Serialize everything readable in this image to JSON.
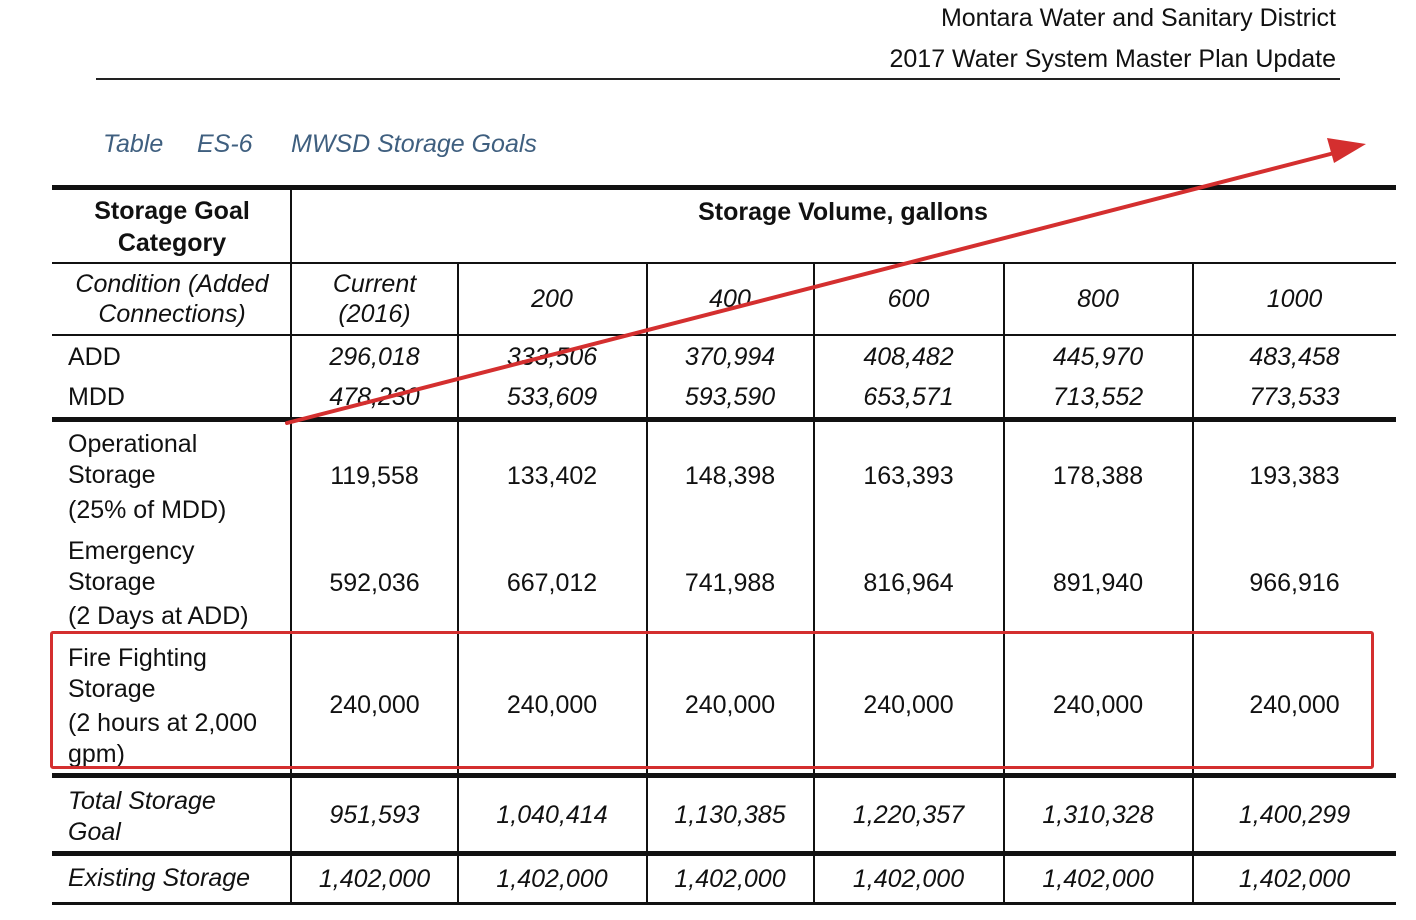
{
  "header": {
    "line1": "Montara Water and Sanitary District",
    "line2": "2017 Water System Master Plan Update"
  },
  "caption": {
    "table_label": "Table",
    "table_number": "ES-6",
    "table_title": "MWSD Storage Goals"
  },
  "table": {
    "col0_header": "Storage Goal Category",
    "span_header": "Storage Volume, gallons",
    "condition_label": "Condition (Added Connections)",
    "columns": [
      "Current (2016)",
      "200",
      "400",
      "600",
      "800",
      "1000"
    ],
    "rows": [
      {
        "label": "ADD",
        "values": [
          "296,018",
          "333,506",
          "370,994",
          "408,482",
          "445,970",
          "483,458"
        ]
      },
      {
        "label": "MDD",
        "values": [
          "478,230",
          "533,609",
          "593,590",
          "653,571",
          "713,552",
          "773,533"
        ]
      },
      {
        "label_lines": [
          "Operational",
          "Storage",
          "(25% of MDD)"
        ],
        "values": [
          "119,558",
          "133,402",
          "148,398",
          "163,393",
          "178,388",
          "193,383"
        ]
      },
      {
        "label_lines": [
          "Emergency",
          "Storage",
          "(2 Days at ADD)"
        ],
        "values": [
          "592,036",
          "667,012",
          "741,988",
          "816,964",
          "891,940",
          "966,916"
        ]
      },
      {
        "label_lines": [
          "Fire Fighting",
          "Storage",
          "(2 hours at 2,000",
          "gpm)"
        ],
        "values": [
          "240,000",
          "240,000",
          "240,000",
          "240,000",
          "240,000",
          "240,000"
        ]
      },
      {
        "label_lines": [
          "Total Storage",
          "Goal"
        ],
        "values": [
          "951,593",
          "1,040,414",
          "1,130,385",
          "1,220,357",
          "1,310,328",
          "1,400,299"
        ]
      },
      {
        "label": "Existing Storage",
        "values": [
          "1,402,000",
          "1,402,000",
          "1,402,000",
          "1,402,000",
          "1,402,000",
          "1,402,000"
        ]
      }
    ]
  },
  "annotations": {
    "arrow_color": "#d42f2f",
    "highlight_color": "#d42f2f"
  }
}
